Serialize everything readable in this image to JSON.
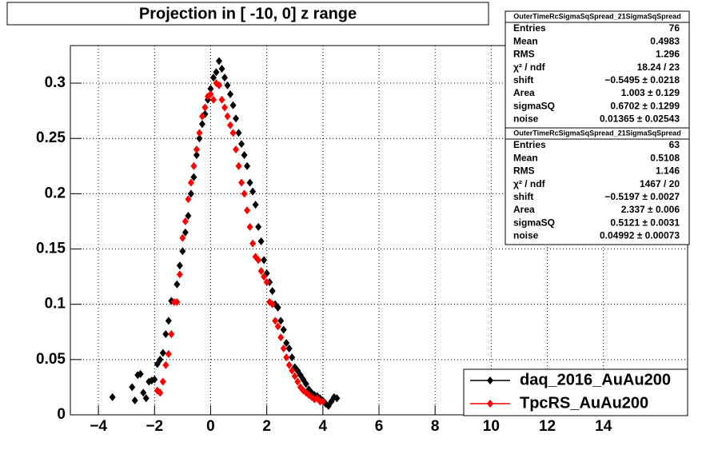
{
  "chart_data": {
    "type": "scatter",
    "title": "Projection in [ -10,   0] z range",
    "xlim": [
      -5,
      17
    ],
    "ylim": [
      0,
      0.334
    ],
    "xticks": [
      {
        "value": -4,
        "label": "−4"
      },
      {
        "value": -2,
        "label": "−2"
      },
      0,
      2,
      4,
      6,
      8,
      10,
      12,
      14
    ],
    "yticks": [
      0,
      0.05,
      0.1,
      0.15,
      0.2,
      0.25,
      0.3
    ],
    "grid": true,
    "legend": "lower right",
    "series": [
      {
        "name": "daq_2016_AuAu200",
        "color": "#000000",
        "x": [
          -3.5,
          -2.8,
          -2.7,
          -2.6,
          -2.5,
          -2.4,
          -2.3,
          -2.2,
          -2.1,
          -2.0,
          -1.9,
          -1.8,
          -1.7,
          -1.6,
          -1.5,
          -1.4,
          -1.2,
          -1.1,
          -1.0,
          -0.9,
          -0.8,
          -0.7,
          -0.6,
          -0.5,
          -0.4,
          -0.3,
          -0.2,
          -0.1,
          0.0,
          0.1,
          0.2,
          0.3,
          0.4,
          0.5,
          0.6,
          0.7,
          0.8,
          0.9,
          1.0,
          1.1,
          1.2,
          1.3,
          1.4,
          1.5,
          1.6,
          1.7,
          1.8,
          1.9,
          2.0,
          2.1,
          2.2,
          2.3,
          2.4,
          2.5,
          2.6,
          2.7,
          2.8,
          2.9,
          3.0,
          3.1,
          3.2,
          3.3,
          3.4,
          3.5,
          3.6,
          3.7,
          3.8,
          3.9,
          4.0,
          4.1,
          4.2,
          4.3,
          4.4,
          4.5
        ],
        "values": [
          0.016,
          0.025,
          0.013,
          0.036,
          0.037,
          0.02,
          0.015,
          0.03,
          0.031,
          0.032,
          0.046,
          0.05,
          0.056,
          0.073,
          0.085,
          0.103,
          0.118,
          0.135,
          0.148,
          0.165,
          0.18,
          0.2,
          0.215,
          0.235,
          0.25,
          0.263,
          0.272,
          0.285,
          0.295,
          0.305,
          0.31,
          0.32,
          0.313,
          0.305,
          0.298,
          0.29,
          0.28,
          0.268,
          0.255,
          0.245,
          0.235,
          0.225,
          0.21,
          0.202,
          0.19,
          0.17,
          0.157,
          0.14,
          0.128,
          0.12,
          0.112,
          0.1,
          0.097,
          0.085,
          0.077,
          0.065,
          0.06,
          0.052,
          0.043,
          0.04,
          0.036,
          0.032,
          0.028,
          0.023,
          0.02,
          0.018,
          0.017,
          0.015,
          0.013,
          0.01,
          0.008,
          0.012,
          0.016,
          0.015
        ]
      },
      {
        "name": "TpcRS_AuAu200",
        "color": "#ff0000",
        "x": [
          -1.9,
          -1.8,
          -1.7,
          -1.6,
          -1.5,
          -1.4,
          -1.3,
          -1.2,
          -1.1,
          -1.0,
          -0.9,
          -0.8,
          -0.7,
          -0.6,
          -0.5,
          -0.4,
          -0.3,
          -0.2,
          -0.1,
          0.0,
          0.1,
          0.2,
          0.3,
          0.4,
          0.5,
          0.6,
          0.7,
          0.8,
          0.9,
          1.0,
          1.1,
          1.2,
          1.3,
          1.4,
          1.5,
          1.6,
          1.7,
          1.8,
          1.9,
          2.0,
          2.1,
          2.2,
          2.3,
          2.4,
          2.5,
          2.6,
          2.7,
          2.8,
          2.9,
          3.0,
          3.1,
          3.2,
          3.3,
          3.4,
          3.5,
          3.6,
          3.7,
          3.8,
          3.9,
          4.0
        ],
        "values": [
          0.022,
          0.02,
          0.03,
          0.045,
          0.055,
          0.073,
          0.102,
          0.102,
          0.127,
          0.16,
          0.175,
          0.195,
          0.21,
          0.225,
          0.24,
          0.255,
          0.27,
          0.278,
          0.288,
          0.29,
          0.285,
          0.3,
          0.298,
          0.285,
          0.278,
          0.27,
          0.262,
          0.255,
          0.24,
          0.225,
          0.21,
          0.2,
          0.185,
          0.17,
          0.155,
          0.143,
          0.14,
          0.13,
          0.125,
          0.12,
          0.102,
          0.1,
          0.085,
          0.08,
          0.07,
          0.06,
          0.052,
          0.045,
          0.04,
          0.035,
          0.03,
          0.025,
          0.022,
          0.02,
          0.018,
          0.016,
          0.014,
          0.015,
          0.012,
          0.012
        ]
      }
    ],
    "stats": [
      {
        "title": "OuterTimeRcSigmaSqSpread_21SigmaSqSpread",
        "rows": [
          [
            "Entries",
            "76"
          ],
          [
            "Mean",
            "0.4983"
          ],
          [
            "RMS",
            "1.296"
          ],
          [
            "χ² / ndf",
            "18.24 / 23"
          ],
          [
            "shift",
            "−0.5495 ± 0.0218"
          ],
          [
            "Area",
            "1.003 ± 0.129"
          ],
          [
            "sigmaSQ",
            "0.6702 ± 0.1299"
          ],
          [
            "noise",
            "0.01365 ± 0.02543"
          ]
        ]
      },
      {
        "title": "OuterTimeRcSigmaSqSpread_21SigmaSqSpread",
        "rows": [
          [
            "Entries",
            "63"
          ],
          [
            "Mean",
            "0.5108"
          ],
          [
            "RMS",
            "1.146"
          ],
          [
            "χ² / ndf",
            "1467 / 20"
          ],
          [
            "shift",
            "−0.5197 ± 0.0027"
          ],
          [
            "Area",
            "2.337 ± 0.006"
          ],
          [
            "sigmaSQ",
            "0.5121 ± 0.0031"
          ],
          [
            "noise",
            "0.04992 ± 0.00073"
          ]
        ]
      }
    ]
  }
}
